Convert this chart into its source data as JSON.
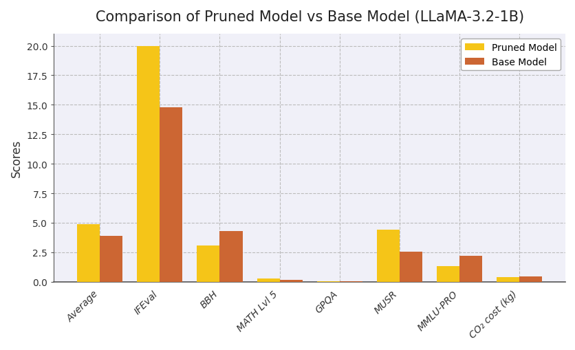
{
  "title": "Comparison of Pruned Model vs Base Model (LLaMA-3.2-1B)",
  "categories": [
    "Average",
    "IFEval",
    "BBH",
    "MATH Lvl 5",
    "GPQA",
    "MUSR",
    "MMLU-PRO",
    "CO₂ cost (kg)"
  ],
  "pruned_values": [
    4.9,
    20.0,
    3.1,
    0.25,
    0.02,
    4.4,
    1.3,
    0.4
  ],
  "base_values": [
    3.9,
    14.8,
    4.3,
    0.15,
    0.02,
    2.55,
    2.2,
    0.45
  ],
  "pruned_color": "#F5C518",
  "base_color": "#CC6633",
  "ylabel": "Scores",
  "ylim": [
    0,
    21
  ],
  "yticks": [
    0.0,
    2.5,
    5.0,
    7.5,
    10.0,
    12.5,
    15.0,
    17.5,
    20.0
  ],
  "legend_labels": [
    "Pruned Model",
    "Base Model"
  ],
  "plot_bg_color": "#F0F0F8",
  "fig_bg_color": "#FFFFFF",
  "grid_color": "#BBBBBB",
  "spine_color": "#555555",
  "title_fontsize": 15,
  "axis_fontsize": 12,
  "tick_fontsize": 10,
  "bar_width": 0.38
}
